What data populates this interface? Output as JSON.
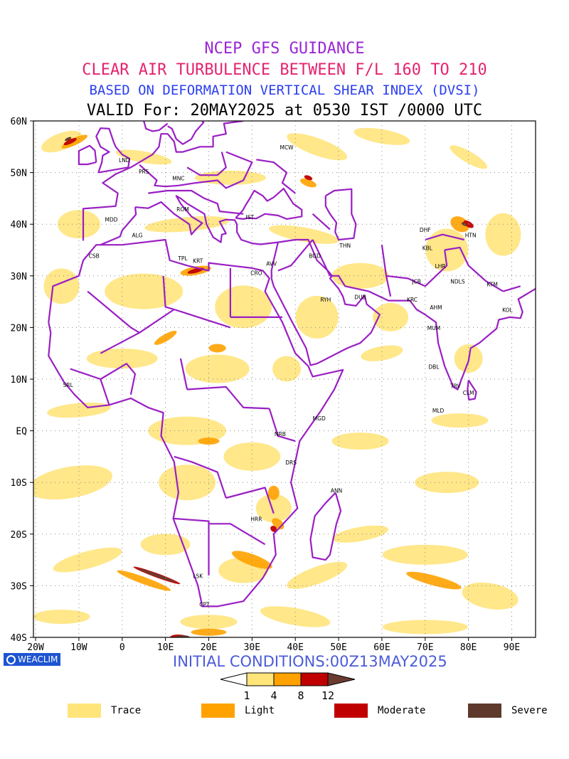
{
  "titles": {
    "line1": "NCEP GFS GUIDANCE",
    "line2": "CLEAR AIR TURBULENCE BETWEEN F/L 160 TO 210",
    "line3": "BASED ON DEFORMATION VERTICAL SHEAR INDEX (DVSI)",
    "line4": "VALID For: 20MAY2025 at 0530 IST /0000 UTC"
  },
  "title_colors": {
    "line1": "#9a26d6",
    "line2": "#e5246e",
    "line3": "#2b3ff0",
    "line4": "#000000"
  },
  "map": {
    "lat_labels": [
      "60N",
      "50N",
      "40N",
      "30N",
      "20N",
      "10N",
      "EQ",
      "10S",
      "20S",
      "30S",
      "40S"
    ],
    "lon_labels": [
      "20W",
      "10W",
      "0",
      "10E",
      "20E",
      "30E",
      "40E",
      "50E",
      "60E",
      "70E",
      "80E",
      "90E"
    ],
    "stations": [
      {
        "code": "MCW",
        "lon": 38,
        "lat": 54.5
      },
      {
        "code": "LND",
        "lon": 0.5,
        "lat": 52
      },
      {
        "code": "PRS",
        "lon": 5,
        "lat": 49.8
      },
      {
        "code": "MNC",
        "lon": 13,
        "lat": 48.5
      },
      {
        "code": "ROM",
        "lon": 14,
        "lat": 42.5
      },
      {
        "code": "IST",
        "lon": 29.5,
        "lat": 41
      },
      {
        "code": "MDD",
        "lon": -2.5,
        "lat": 40.5
      },
      {
        "code": "ALG",
        "lon": 3.5,
        "lat": 37.5
      },
      {
        "code": "CSB",
        "lon": -6.5,
        "lat": 33.5
      },
      {
        "code": "TPL",
        "lon": 14,
        "lat": 33
      },
      {
        "code": "KRT",
        "lon": 17.5,
        "lat": 32.5
      },
      {
        "code": "AVV",
        "lon": 34.5,
        "lat": 32
      },
      {
        "code": "CRO",
        "lon": 31,
        "lat": 30.2
      },
      {
        "code": "BGD",
        "lon": 44.5,
        "lat": 33.5
      },
      {
        "code": "THN",
        "lon": 51.5,
        "lat": 35.5
      },
      {
        "code": "RYH",
        "lon": 47,
        "lat": 25
      },
      {
        "code": "DUB",
        "lon": 55,
        "lat": 25.5
      },
      {
        "code": "DHF",
        "lon": 70,
        "lat": 38.5
      },
      {
        "code": "HTN",
        "lon": 80.5,
        "lat": 37.5
      },
      {
        "code": "KBL",
        "lon": 70.5,
        "lat": 35
      },
      {
        "code": "LHR",
        "lon": 73.5,
        "lat": 31.5
      },
      {
        "code": "JCB",
        "lon": 68,
        "lat": 28.5
      },
      {
        "code": "NDLS",
        "lon": 77.5,
        "lat": 28.5
      },
      {
        "code": "KTM",
        "lon": 85.5,
        "lat": 28
      },
      {
        "code": "KRC",
        "lon": 67,
        "lat": 25
      },
      {
        "code": "AHM",
        "lon": 72.5,
        "lat": 23.5
      },
      {
        "code": "KOL",
        "lon": 89,
        "lat": 23
      },
      {
        "code": "MUM",
        "lon": 72,
        "lat": 19.5
      },
      {
        "code": "DBL",
        "lon": 72,
        "lat": 12
      },
      {
        "code": "TRV",
        "lon": 77,
        "lat": 8.3
      },
      {
        "code": "CLM",
        "lon": 80,
        "lat": 7
      },
      {
        "code": "MLD",
        "lon": 73,
        "lat": 3.5
      },
      {
        "code": "SRL",
        "lon": -12.5,
        "lat": 8.5
      },
      {
        "code": "MGD",
        "lon": 45.5,
        "lat": 2
      },
      {
        "code": "NRB",
        "lon": 36.5,
        "lat": -1
      },
      {
        "code": "DRS",
        "lon": 39,
        "lat": -6.5
      },
      {
        "code": "ANN",
        "lon": 49.5,
        "lat": -12
      },
      {
        "code": "HRR",
        "lon": 31,
        "lat": -17.5
      },
      {
        "code": "LSK",
        "lon": 17.5,
        "lat": -28.5
      },
      {
        "code": "CPT",
        "lon": 19,
        "lat": -34
      }
    ]
  },
  "initial_conditions": "INITIAL CONDITIONS:00Z13MAY2025",
  "weaclim_label": "WEACLIM",
  "colorbar": {
    "ticks": [
      "1",
      "4",
      "8",
      "12"
    ],
    "colors": [
      "#ffffff",
      "#ffe47a",
      "#ffa200",
      "#c00000",
      "#6b3b2f"
    ]
  },
  "legend": [
    {
      "label": "Trace",
      "color": "#ffe47a"
    },
    {
      "label": "Light",
      "color": "#ffa200"
    },
    {
      "label": "Moderate",
      "color": "#c00000"
    },
    {
      "label": "Severe",
      "color": "#5e3a2c"
    }
  ]
}
